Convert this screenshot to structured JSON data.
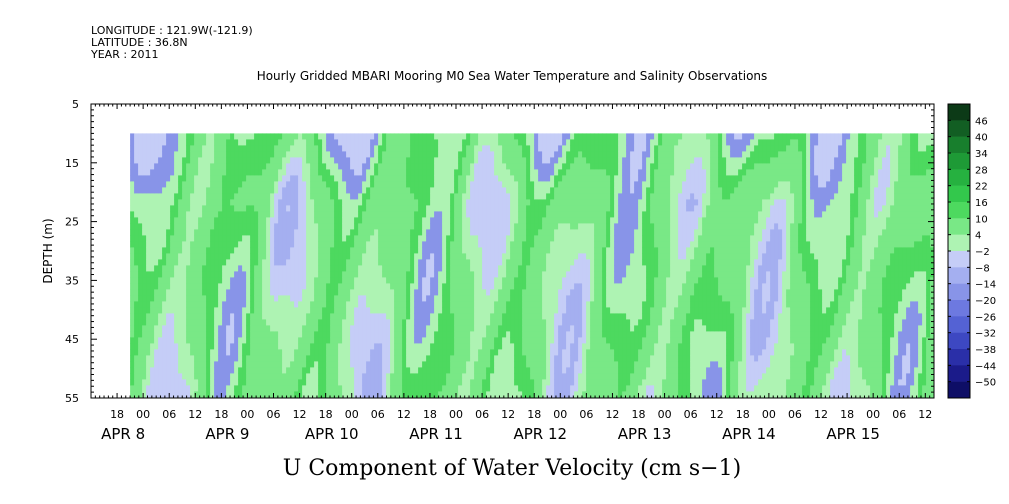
{
  "header": {
    "longitude": "LONGITUDE : 121.9W(-121.9)",
    "latitude": "LATITUDE : 36.8N",
    "year": "YEAR : 2011"
  },
  "chart_data": {
    "type": "heatmap",
    "title": "Hourly Gridded MBARI Mooring M0 Sea Water Temperature and Salinity Observations",
    "xlabel": "U Component of Water Velocity (cm s−1)",
    "ylabel": "DEPTH (m)",
    "ylim": [
      5,
      55
    ],
    "y_ticks": [
      "5",
      "15",
      "25",
      "35",
      "45",
      "55"
    ],
    "x_hour_ticks": [
      "18",
      "00",
      "06",
      "12",
      "18",
      "00",
      "06",
      "12",
      "18",
      "00",
      "06",
      "12",
      "18",
      "00",
      "06",
      "12",
      "18",
      "00",
      "06",
      "12",
      "18",
      "00",
      "06",
      "12",
      "18",
      "00",
      "06",
      "12",
      "18",
      "00",
      "06",
      "12"
    ],
    "x_day_labels": [
      "APR  8",
      "APR  9",
      "APR 10",
      "APR 11",
      "APR 12",
      "APR 13",
      "APR 14",
      "APR 15"
    ],
    "x_start": "2011-04-07T12:00",
    "x_end": "2011-04-15T14:00",
    "data_start": "2011-04-07T21:00",
    "depth_top": 10,
    "colorbar": {
      "levels": [
        "46",
        "40",
        "34",
        "28",
        "22",
        "16",
        "10",
        "4",
        "-2",
        "-8",
        "-14",
        "-20",
        "-26",
        "-32",
        "-38",
        "-44",
        "-50"
      ],
      "colors": [
        "#0c3a17",
        "#125e23",
        "#187f2d",
        "#1e9a36",
        "#26b140",
        "#33c84c",
        "#4dd95f",
        "#79e886",
        "#aef3b3",
        "#c5cdf7",
        "#a4aff0",
        "#8894e8",
        "#6d79e0",
        "#5462d4",
        "#3d48c2",
        "#2a2fa8",
        "#1b1b8a",
        "#0e0e66"
      ]
    },
    "grid": false,
    "legend": "right colorbar"
  }
}
